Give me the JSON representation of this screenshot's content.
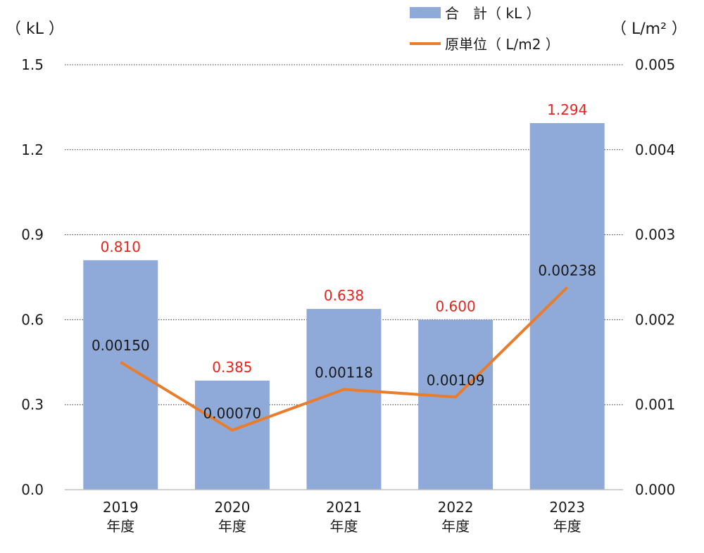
{
  "chart_data": {
    "type": "bar",
    "categories": [
      "2019\n年度",
      "2020\n年度",
      "2021\n年度",
      "2022\n年度",
      "2023\n年度"
    ],
    "y_left_unit": "（ kL ）",
    "y_right_unit": "（ L/m² ）",
    "ylim_left": [
      0,
      1.5
    ],
    "ylim_right": [
      0,
      0.005
    ],
    "yticks_left": [
      "0.0",
      "0.3",
      "0.6",
      "0.9",
      "1.2",
      "1.5"
    ],
    "yticks_right": [
      "0.000",
      "0.001",
      "0.002",
      "0.003",
      "0.004",
      "0.005"
    ],
    "grid": true,
    "legend_position": "top-right",
    "series": [
      {
        "name": "合　計（ kL ）",
        "kind": "bar",
        "axis": "left",
        "color": "#8faad8",
        "values": [
          0.81,
          0.385,
          0.638,
          0.6,
          1.294
        ],
        "labels": [
          "0.810",
          "0.385",
          "0.638",
          "0.600",
          "1.294"
        ]
      },
      {
        "name": "原単位（ L/m2 ）",
        "kind": "line",
        "axis": "right",
        "color": "#e87d2e",
        "values": [
          0.0015,
          0.0007,
          0.00118,
          0.00109,
          0.00238
        ],
        "labels": [
          "0.00150",
          "0.00070",
          "0.00118",
          "0.00109",
          "0.00238"
        ]
      }
    ]
  }
}
